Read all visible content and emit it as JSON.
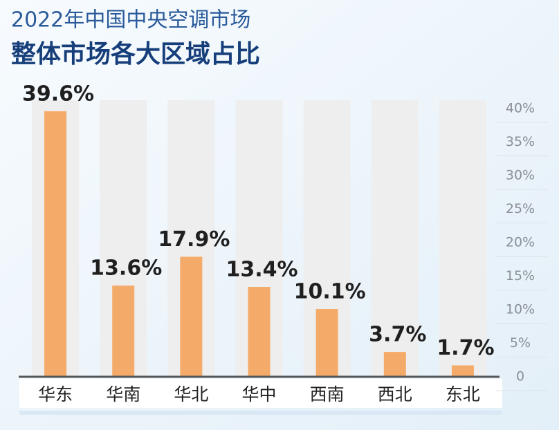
{
  "chart_data": {
    "type": "bar",
    "title": "2022年中国中央空调市场",
    "subtitle": "整体市场各大区域占比",
    "categories": [
      "华东",
      "华南",
      "华北",
      "华中",
      "西南",
      "西北",
      "东北"
    ],
    "values": [
      39.6,
      13.6,
      17.9,
      13.4,
      10.1,
      3.7,
      1.7
    ],
    "value_labels": [
      "39.6%",
      "13.6%",
      "17.9%",
      "13.4%",
      "10.1%",
      "3.7%",
      "1.7%"
    ],
    "color": "#f4ab6a",
    "ylim": [
      0,
      40
    ],
    "yticks": [
      0,
      {
        "value": 5,
        "label": "5%"
      },
      {
        "value": 10,
        "label": "10%"
      },
      {
        "value": 15,
        "label": "15%"
      },
      {
        "value": 20,
        "label": "20%"
      },
      {
        "value": 25,
        "label": "25%"
      },
      {
        "value": 30,
        "label": "30%"
      },
      {
        "value": 35,
        "label": "35%"
      },
      {
        "value": 40,
        "label": "40%"
      }
    ],
    "grid": true
  }
}
